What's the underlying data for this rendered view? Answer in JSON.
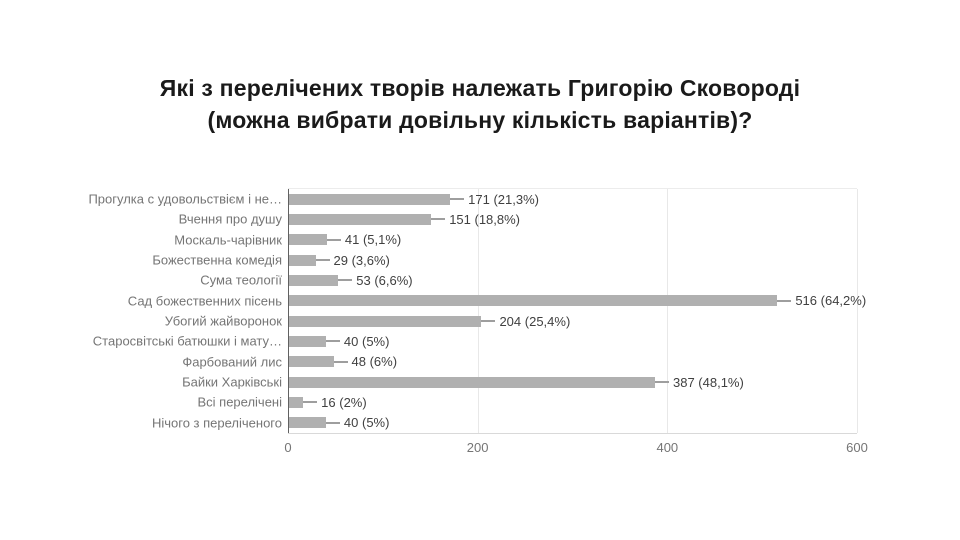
{
  "title": {
    "line1": "Які з перелічених творів належать Григорію Сковороді",
    "line2": "(можна вибрати довільну кількість варіантів)?"
  },
  "chart_data": {
    "type": "bar",
    "orientation": "horizontal",
    "title": "Які з перелічених творів належать Григорію Сковороді (можна вибрати довільну кількість варіантів)?",
    "categories": [
      "Прогулка с удовольствієм і не…",
      "Вчення про душу",
      "Москаль-чарівник",
      "Божественна комедія",
      "Сума теології",
      "Сад божественних пісень",
      "Убогий жайворонок",
      "Старосвітські батюшки і мату…",
      "Фарбований лис",
      "Байки Харківські",
      "Всі перелічені",
      "Нічого з переліченого"
    ],
    "values": [
      171,
      151,
      41,
      29,
      53,
      516,
      204,
      40,
      48,
      387,
      16,
      40
    ],
    "annotations": [
      "171 (21,3%)",
      "151 (18,8%)",
      "41 (5,1%)",
      "29 (3,6%)",
      "53 (6,6%)",
      "516 (64,2%)",
      "204 (25,4%)",
      "40 (5%)",
      "48 (6%)",
      "387 (48,1%)",
      "16 (2%)",
      "40 (5%)"
    ],
    "xlim": [
      0,
      600
    ],
    "x_ticks": [
      0,
      200,
      400,
      600
    ],
    "grid": true,
    "legend": "none",
    "colors": {
      "bar": "#b0b0b0",
      "annotation_text": "#404040",
      "category_text": "#757575",
      "tick_text": "#757575",
      "gridline": "#e8e8e8",
      "axis_line": "#616161",
      "title_text": "#1a1a1a",
      "background": "#ffffff"
    }
  }
}
